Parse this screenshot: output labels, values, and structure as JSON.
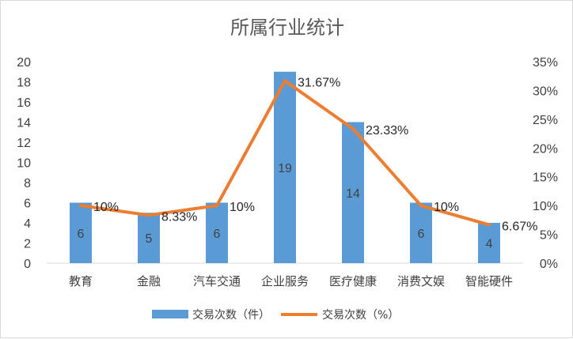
{
  "chart_data": {
    "type": "bar",
    "title": "所属行业统计",
    "categories": [
      "教育",
      "金融",
      "汽车交通",
      "企业服务",
      "医疗健康",
      "消费文娱",
      "智能硬件"
    ],
    "series": [
      {
        "name": "交易次数（件）",
        "type": "bar",
        "axis": "left",
        "values": [
          6,
          5,
          6,
          19,
          14,
          6,
          4
        ],
        "labels": [
          "6",
          "5",
          "6",
          "19",
          "14",
          "6",
          "4"
        ],
        "color": "#5b9bd5"
      },
      {
        "name": "交易次数（%）",
        "type": "line",
        "axis": "right",
        "values": [
          10,
          8.33,
          10,
          31.67,
          23.33,
          10,
          6.67
        ],
        "labels": [
          "10%",
          "8.33%",
          "10%",
          "31.67%",
          "23.33%",
          "10%",
          "6.67%"
        ],
        "color": "#ed7d31"
      }
    ],
    "y_left": {
      "min": 0,
      "max": 20,
      "step": 2,
      "ticks": [
        "0",
        "2",
        "4",
        "6",
        "8",
        "10",
        "12",
        "14",
        "16",
        "18",
        "20"
      ]
    },
    "y_right": {
      "min": 0,
      "max": 35,
      "step": 5,
      "ticks": [
        "0%",
        "5%",
        "10%",
        "15%",
        "20%",
        "25%",
        "30%",
        "35%"
      ]
    },
    "grid": false,
    "legend_position": "bottom"
  }
}
